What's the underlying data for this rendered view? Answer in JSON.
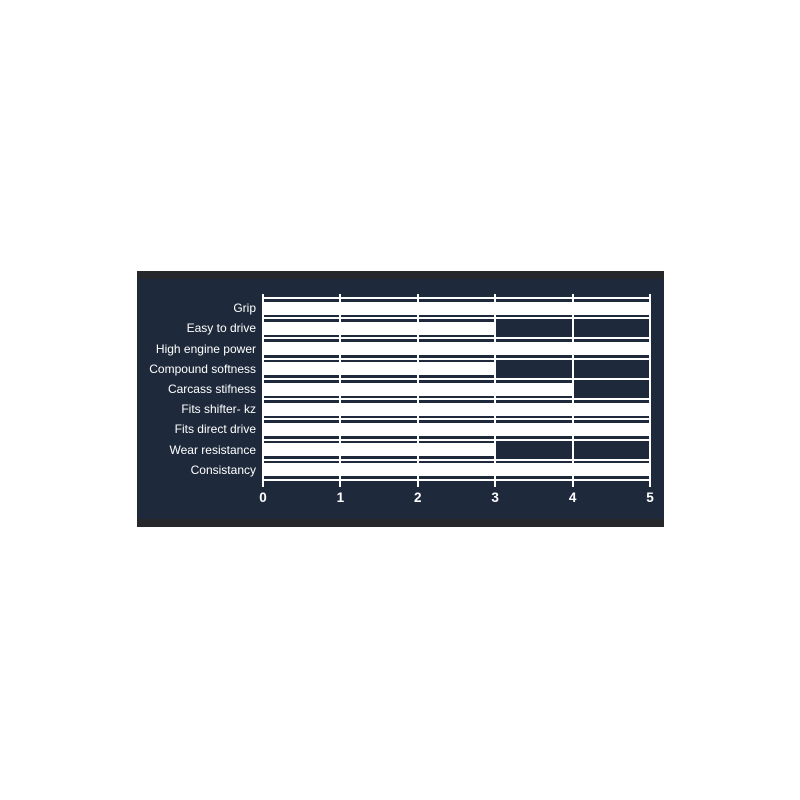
{
  "chart_data": {
    "type": "bar",
    "orientation": "horizontal",
    "title": "",
    "xlabel": "",
    "ylabel": "",
    "categories": [
      "Grip",
      "Easy to drive",
      "High engine power",
      "Compound softness",
      "Carcass stifness",
      "Fits shifter- kz",
      "Fits direct drive",
      "Wear resistance",
      "Consistancy"
    ],
    "values": [
      5,
      3,
      5,
      3,
      4,
      5,
      5,
      3,
      5
    ],
    "xlim": [
      0,
      5
    ],
    "xticks": [
      "0",
      "1",
      "2",
      "3",
      "4",
      "5"
    ],
    "grid": true,
    "legend": false,
    "colors": {
      "bar": "#ffffff",
      "grid": "#ffffff",
      "text": "#ffffff",
      "panel_background": "#1e2a3b",
      "panel_border": "#26272b",
      "page_background": "#ffffff"
    }
  }
}
